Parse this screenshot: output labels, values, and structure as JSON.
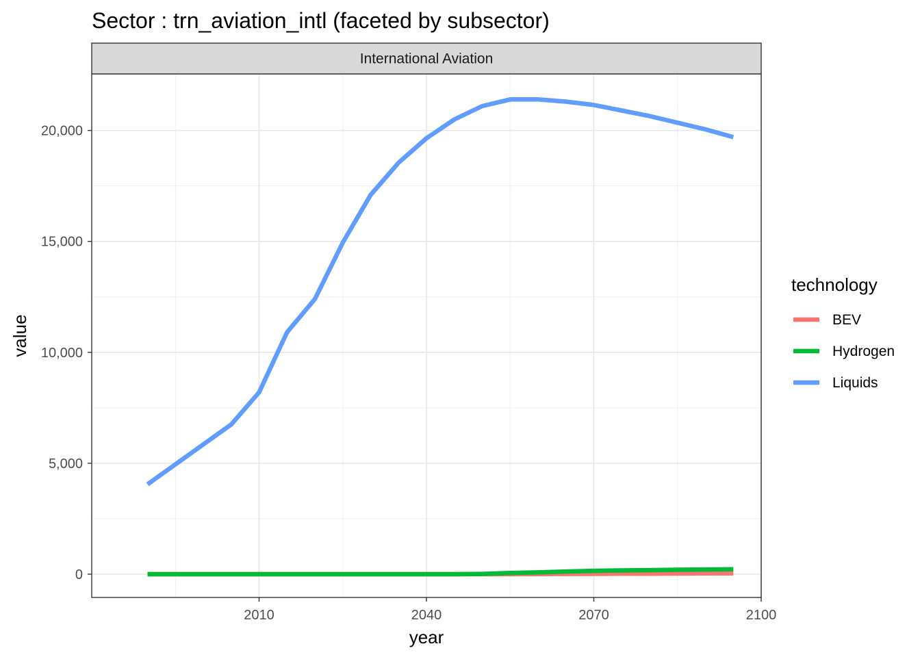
{
  "chart_data": {
    "type": "line",
    "title": "Sector : trn_aviation_intl (faceted by subsector)",
    "facet_label": "International Aviation",
    "xlabel": "year",
    "ylabel": "value",
    "xlim": [
      1980,
      2100
    ],
    "ylim": [
      -1050,
      22550
    ],
    "x_ticks": [
      2010,
      2040,
      2070,
      2100
    ],
    "x_tick_labels": [
      "2010",
      "2040",
      "2070",
      "2100"
    ],
    "x_minor_ticks": [
      1995,
      2025,
      2055,
      2085
    ],
    "y_ticks": [
      0,
      5000,
      10000,
      15000,
      20000
    ],
    "y_tick_labels": [
      "0",
      "5,000",
      "10,000",
      "15,000",
      "20,000"
    ],
    "y_minor_ticks": [
      2500,
      7500,
      12500,
      17500
    ],
    "grid": true,
    "legend": {
      "title": "technology",
      "position": "right"
    },
    "x": [
      1990,
      2005,
      2010,
      2015,
      2020,
      2025,
      2030,
      2035,
      2040,
      2045,
      2050,
      2055,
      2060,
      2065,
      2070,
      2075,
      2080,
      2085,
      2090,
      2095
    ],
    "series": [
      {
        "name": "BEV",
        "color": "#F8766D",
        "values": [
          0,
          0,
          0,
          0,
          0,
          0,
          0,
          0,
          0,
          0,
          0,
          0,
          5,
          10,
          15,
          20,
          25,
          30,
          35,
          40
        ]
      },
      {
        "name": "Hydrogen",
        "color": "#00BA38",
        "values": [
          0,
          0,
          0,
          0,
          0,
          0,
          0,
          0,
          0,
          0,
          10,
          50,
          80,
          120,
          150,
          170,
          180,
          200,
          210,
          220
        ]
      },
      {
        "name": "Liquids",
        "color": "#619CFF",
        "values": [
          4050,
          6750,
          8200,
          10900,
          12400,
          14950,
          17100,
          18550,
          19650,
          20500,
          21100,
          21400,
          21400,
          21300,
          21150,
          20900,
          20650,
          20350,
          20050,
          19700
        ]
      }
    ]
  }
}
